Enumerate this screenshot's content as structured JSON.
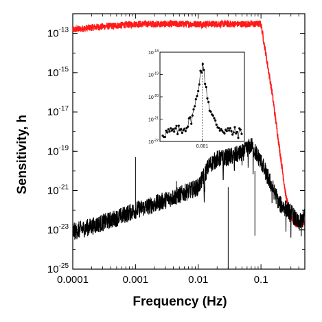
{
  "chart_data": {
    "type": "line",
    "title": "",
    "xlabel": "Frequency (Hz)",
    "ylabel": "Sensitivity, h",
    "xscale": "log",
    "yscale": "log",
    "xlim": [
      0.0001,
      0.5
    ],
    "ylim": [
      1e-25,
      1e-12
    ],
    "x_ticks": [
      {
        "value": 0.0001,
        "label": "0.0001"
      },
      {
        "value": 0.001,
        "label": "0.001"
      },
      {
        "value": 0.01,
        "label": "0.01"
      },
      {
        "value": 0.1,
        "label": "0.1"
      }
    ],
    "y_ticks": [
      {
        "value": 1e-13,
        "base": "10",
        "exp": "-13"
      },
      {
        "value": 1e-15,
        "base": "10",
        "exp": "-15"
      },
      {
        "value": 1e-17,
        "base": "10",
        "exp": "-17"
      },
      {
        "value": 1e-19,
        "base": "10",
        "exp": "-19"
      },
      {
        "value": 1e-21,
        "base": "10",
        "exp": "-21"
      },
      {
        "value": 1e-23,
        "base": "10",
        "exp": "-23"
      },
      {
        "value": 1e-25,
        "base": "10",
        "exp": "-25"
      }
    ],
    "grid": false,
    "legend": "none",
    "series": [
      {
        "color": "#ff1a1a",
        "x": [
          0.0001,
          0.0002,
          0.0005,
          0.001,
          0.005,
          0.01,
          0.05,
          0.1,
          0.15,
          0.2,
          0.25,
          0.3,
          0.35,
          0.45,
          0.5
        ],
        "y": [
          1.5e-13,
          2e-13,
          2.5e-13,
          3e-13,
          3e-13,
          3e-13,
          3e-13,
          3e-13,
          1e-16,
          1e-19,
          5e-22,
          5e-23,
          2e-23,
          2e-23,
          2e-23
        ]
      },
      {
        "color": "#000000",
        "x": [
          0.0001,
          0.0002,
          0.0005,
          0.001,
          0.002,
          0.005,
          0.01,
          0.015,
          0.02,
          0.03,
          0.05,
          0.07,
          0.1,
          0.2,
          0.3,
          0.4,
          0.5
        ],
        "y": [
          8e-24,
          1.5e-23,
          4e-23,
          1e-22,
          2e-22,
          6e-22,
          1.5e-21,
          2e-20,
          4e-20,
          5e-20,
          8e-20,
          2e-19,
          3e-20,
          2e-22,
          8e-23,
          2e-23,
          5e-23
        ]
      }
    ],
    "inset": {
      "type": "scatter",
      "xscale": "log",
      "yscale": "log",
      "ylim": [
        1e-22,
        1e-18
      ],
      "x_ticks": [
        {
          "value": 0.001,
          "label": "0.001"
        }
      ],
      "y_ticks": [
        {
          "value": 1e-18,
          "base": "10",
          "exp": "-18"
        },
        {
          "value": 1e-19,
          "base": "10",
          "exp": "-19"
        },
        {
          "value": 1e-20,
          "base": "10",
          "exp": "-20"
        },
        {
          "value": 1e-21,
          "base": "10",
          "exp": "-21"
        },
        {
          "value": 1e-22,
          "base": "10",
          "exp": "-22"
        }
      ],
      "peak_x": 0.001,
      "peak_y": 2e-19,
      "floor_y": 2e-22,
      "color": "#000000"
    }
  }
}
